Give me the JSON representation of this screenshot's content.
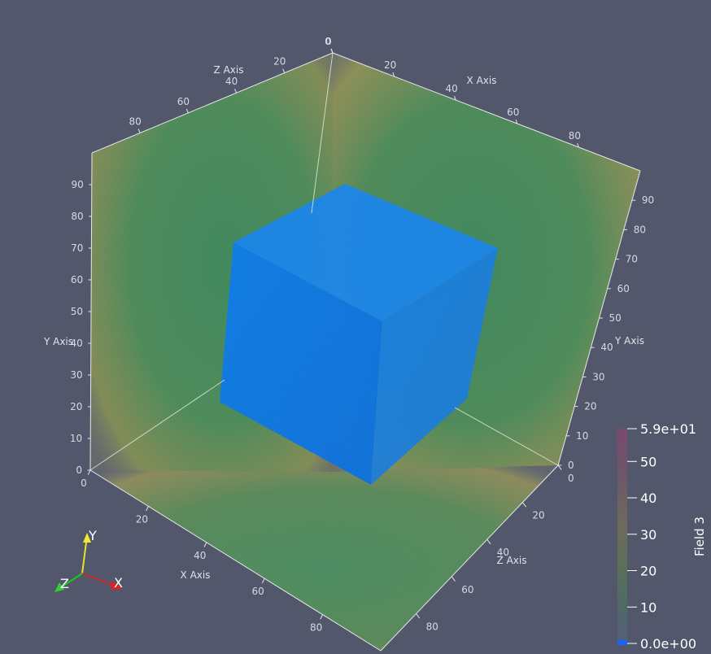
{
  "x_axis": {
    "title": "X Axis",
    "top_ticks": [
      "0",
      "20",
      "40",
      "60",
      "80"
    ],
    "bottom_ticks": [
      "0",
      "20",
      "40",
      "60",
      "80"
    ]
  },
  "y_axis": {
    "title": "Y Axis",
    "left_ticks": [
      "0",
      "10",
      "20",
      "30",
      "40",
      "50",
      "60",
      "70",
      "80",
      "90"
    ],
    "right_ticks": [
      "0",
      "10",
      "20",
      "30",
      "40",
      "50",
      "60",
      "70",
      "80",
      "90"
    ]
  },
  "z_axis": {
    "title": "Z Axis",
    "top_ticks": [
      "0",
      "20",
      "40",
      "60",
      "80"
    ],
    "bottom_ticks": [
      "0",
      "20",
      "40",
      "60",
      "80"
    ]
  },
  "colorbar": {
    "title": "Field 3",
    "labels": [
      "5.9e+01",
      "50",
      "40",
      "30",
      "20",
      "10",
      "0.0e+00"
    ],
    "range": [
      0,
      59
    ]
  },
  "orientation": {
    "x": "X",
    "y": "Y",
    "z": "Z"
  },
  "colors": {
    "background": "#52576b",
    "inner_cube": "#0a74e6",
    "shell_green": "#4f8f5e",
    "shell_yellow": "#a9a34e"
  }
}
